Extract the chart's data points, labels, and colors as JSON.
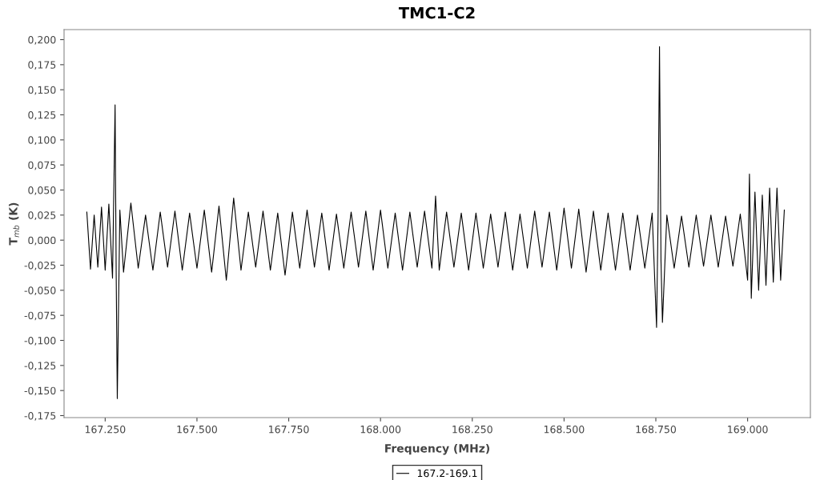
{
  "chart_data": {
    "type": "line",
    "title": "TMC1-C2",
    "xlabel": "Frequency (MHz)",
    "ylabel": "T$_{mb}$ (K)",
    "xlim": [
      167138,
      169171
    ],
    "ylim": [
      -0.177,
      0.21
    ],
    "xticks": [
      {
        "value": 167250,
        "label": "167.250"
      },
      {
        "value": 167500,
        "label": "167.500"
      },
      {
        "value": 167750,
        "label": "167.750"
      },
      {
        "value": 168000,
        "label": "168.000"
      },
      {
        "value": 168250,
        "label": "168.250"
      },
      {
        "value": 168500,
        "label": "168.500"
      },
      {
        "value": 168750,
        "label": "168.750"
      },
      {
        "value": 169000,
        "label": "169.000"
      }
    ],
    "yticks": [
      {
        "value": -0.175,
        "label": "-0,175"
      },
      {
        "value": -0.15,
        "label": "-0,150"
      },
      {
        "value": -0.125,
        "label": "-0,125"
      },
      {
        "value": -0.1,
        "label": "-0,100"
      },
      {
        "value": -0.075,
        "label": "-0,075"
      },
      {
        "value": -0.05,
        "label": "-0,050"
      },
      {
        "value": -0.025,
        "label": "-0,025"
      },
      {
        "value": 0,
        "label": "0,000"
      },
      {
        "value": 0.025,
        "label": "0,025"
      },
      {
        "value": 0.05,
        "label": "0,050"
      },
      {
        "value": 0.075,
        "label": "0,075"
      },
      {
        "value": 0.1,
        "label": "0,100"
      },
      {
        "value": 0.125,
        "label": "0,125"
      },
      {
        "value": 0.15,
        "label": "0,150"
      },
      {
        "value": 0.175,
        "label": "0,175"
      },
      {
        "value": 0.2,
        "label": "0,200"
      }
    ],
    "grid": false,
    "legend": "bottom",
    "series": [
      {
        "name": "167.2-169.1",
        "color": "#000000",
        "x": [
          167200,
          167210,
          167220,
          167230,
          167240,
          167250,
          167260,
          167270,
          167277,
          167280,
          167283,
          167290,
          167300,
          167320,
          167340,
          167360,
          167380,
          167400,
          167420,
          167440,
          167460,
          167480,
          167500,
          167520,
          167540,
          167560,
          167580,
          167600,
          167620,
          167640,
          167660,
          167680,
          167700,
          167720,
          167740,
          167760,
          167780,
          167800,
          167820,
          167840,
          167860,
          167880,
          167900,
          167920,
          167940,
          167960,
          167980,
          168000,
          168020,
          168040,
          168060,
          168080,
          168100,
          168120,
          168140,
          168150,
          168160,
          168180,
          168200,
          168220,
          168240,
          168260,
          168280,
          168300,
          168320,
          168340,
          168360,
          168380,
          168400,
          168420,
          168440,
          168460,
          168480,
          168500,
          168520,
          168540,
          168560,
          168580,
          168600,
          168620,
          168640,
          168660,
          168680,
          168700,
          168720,
          168740,
          168752,
          168756,
          168760,
          168764,
          168768,
          168780,
          168800,
          168820,
          168840,
          168860,
          168880,
          168900,
          168920,
          168940,
          168960,
          168980,
          169000,
          169005,
          169010,
          169020,
          169030,
          169040,
          169050,
          169060,
          169070,
          169080,
          169090,
          169100
        ],
        "values": [
          0.028,
          -0.029,
          0.025,
          -0.027,
          0.033,
          -0.03,
          0.036,
          -0.038,
          0.135,
          -0.035,
          -0.158,
          0.03,
          -0.032,
          0.037,
          -0.028,
          0.025,
          -0.03,
          0.028,
          -0.027,
          0.029,
          -0.03,
          0.027,
          -0.028,
          0.03,
          -0.032,
          0.034,
          -0.04,
          0.042,
          -0.03,
          0.028,
          -0.027,
          0.029,
          -0.03,
          0.027,
          -0.035,
          0.028,
          -0.028,
          0.03,
          -0.027,
          0.027,
          -0.03,
          0.026,
          -0.028,
          0.028,
          -0.027,
          0.029,
          -0.03,
          0.03,
          -0.028,
          0.027,
          -0.03,
          0.028,
          -0.027,
          0.029,
          -0.028,
          0.044,
          -0.03,
          0.028,
          -0.027,
          0.027,
          -0.03,
          0.027,
          -0.028,
          0.026,
          -0.027,
          0.028,
          -0.03,
          0.026,
          -0.028,
          0.029,
          -0.027,
          0.028,
          -0.03,
          0.032,
          -0.028,
          0.031,
          -0.032,
          0.029,
          -0.03,
          0.027,
          -0.03,
          0.027,
          -0.03,
          0.025,
          -0.028,
          0.027,
          -0.087,
          0.02,
          0.193,
          -0.02,
          -0.082,
          0.025,
          -0.028,
          0.024,
          -0.027,
          0.025,
          -0.026,
          0.025,
          -0.027,
          0.024,
          -0.026,
          0.026,
          -0.04,
          0.066,
          -0.058,
          0.048,
          -0.05,
          0.045,
          -0.045,
          0.052,
          -0.042,
          0.052,
          -0.04,
          0.03
        ]
      }
    ]
  }
}
